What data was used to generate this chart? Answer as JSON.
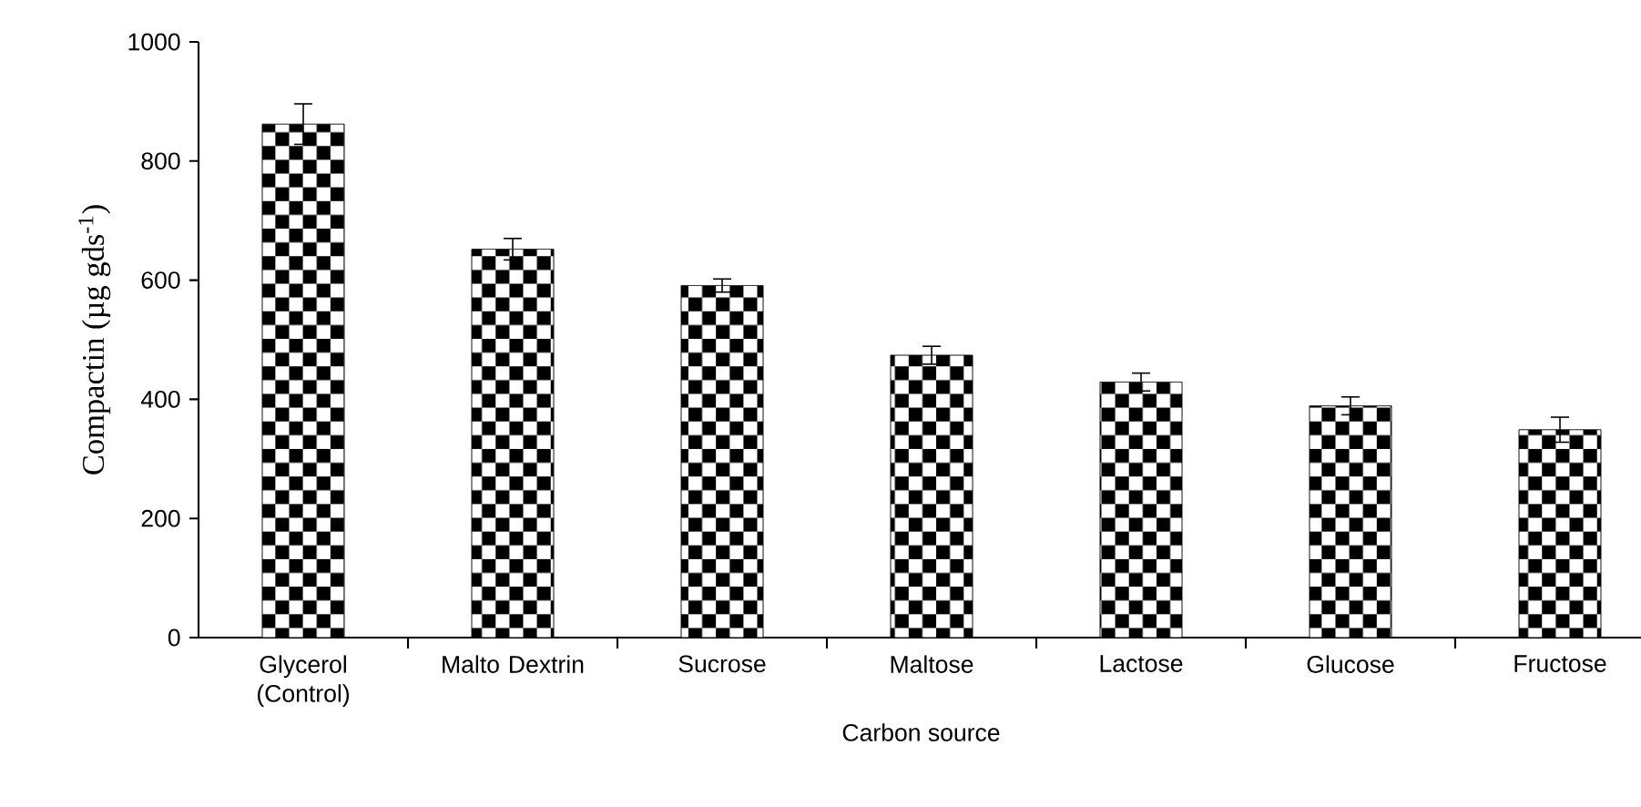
{
  "chart_data": {
    "type": "bar",
    "xlabel": "Carbon source",
    "ylabel": "Compactin (µg gds$^{-1}$)",
    "categories": [
      "Glycerol (Control)",
      "Malto Dextrin",
      "Sucrose",
      "Maltose",
      "Lactose",
      "Glucose",
      "Fructose"
    ],
    "values": [
      862,
      652,
      591,
      474,
      429,
      389,
      349
    ],
    "errors": [
      34,
      18,
      11,
      15,
      15,
      15,
      21
    ],
    "color": "#000000",
    "ylim": [
      0,
      1000
    ],
    "yticks": [
      0,
      200,
      400,
      600,
      800,
      1000
    ]
  }
}
